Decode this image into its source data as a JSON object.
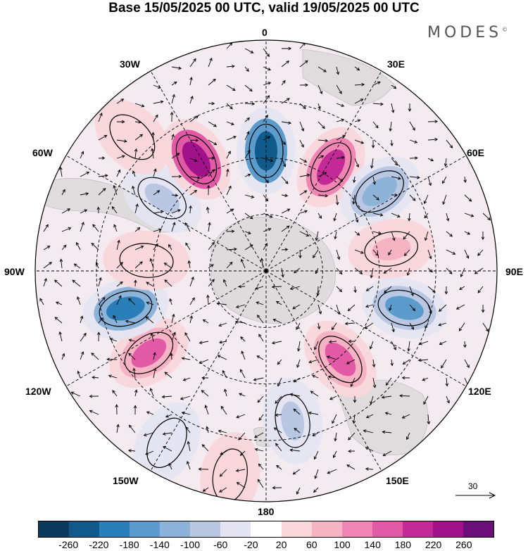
{
  "title": "Base 15/05/2025 00 UTC, valid 19/05/2025 00 UTC",
  "brand": "MODES",
  "brand_mark": "©",
  "longitude_labels": {
    "lon_0": "0",
    "lon_30e": "30E",
    "lon_60e": "60E",
    "lon_90e": "90E",
    "lon_120e": "120E",
    "lon_150e": "150E",
    "lon_180": "180",
    "lon_150w": "150W",
    "lon_120w": "120W",
    "lon_90w": "90W",
    "lon_60w": "60W",
    "lon_30w": "30W"
  },
  "reference_vector": {
    "value": "30"
  },
  "colorbar": {
    "colors": [
      "#0c3a5c",
      "#0f5a8a",
      "#2a7fb8",
      "#5b9ccc",
      "#8db3d9",
      "#b9c7e3",
      "#e4e4f2",
      "#ffffff",
      "#f8d6d9",
      "#f5b3c4",
      "#ef86b4",
      "#e25aa6",
      "#c42a97",
      "#a0118a",
      "#6b0f78"
    ],
    "ticks": [
      "-260",
      "-220",
      "-180",
      "-140",
      "-100",
      "-60",
      "-20",
      "20",
      "60",
      "100",
      "140",
      "180",
      "220",
      "260"
    ]
  },
  "anomalies": [
    {
      "lon": 0,
      "r": 0.52,
      "value": -240
    },
    {
      "lon": 32,
      "r": 0.53,
      "value": 200
    },
    {
      "lon": 55,
      "r": 0.6,
      "value": -120
    },
    {
      "lon": 80,
      "r": 0.55,
      "value": 70
    },
    {
      "lon": 105,
      "r": 0.62,
      "value": -160
    },
    {
      "lon": 140,
      "r": 0.5,
      "value": 150
    },
    {
      "lon": 170,
      "r": 0.66,
      "value": -90
    },
    {
      "lon": 190,
      "r": 0.9,
      "value": 60
    },
    {
      "lon": 210,
      "r": 0.86,
      "value": -50
    },
    {
      "lon": 235,
      "r": 0.62,
      "value": 160
    },
    {
      "lon": 255,
      "r": 0.63,
      "value": -180
    },
    {
      "lon": 275,
      "r": 0.52,
      "value": 60
    },
    {
      "lon": 305,
      "r": 0.55,
      "value": -90
    },
    {
      "lon": 328,
      "r": 0.57,
      "value": 240
    },
    {
      "lon": 315,
      "r": 0.82,
      "value": 40
    }
  ]
}
